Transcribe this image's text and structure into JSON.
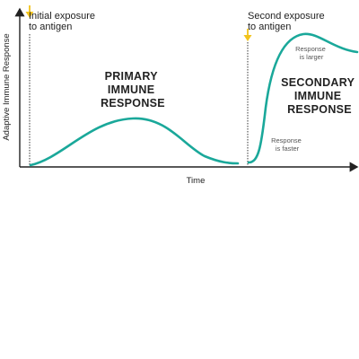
{
  "chart_data": {
    "type": "line",
    "xlabel": "Time",
    "ylabel": "Adaptive Immune Response",
    "series_color": "#1aa89a",
    "marker_color": "#f2c31b",
    "events": [
      {
        "label_lines": [
          "Initial exposure",
          "to antigen"
        ]
      },
      {
        "label_lines": [
          "Second exposure",
          "to antigen"
        ]
      }
    ],
    "phases": [
      {
        "label_lines": [
          "PRIMARY",
          "IMMUNE",
          "RESPONSE"
        ]
      },
      {
        "label_lines": [
          "SECONDARY",
          "IMMUNE",
          "RESPONSE"
        ]
      }
    ],
    "notes": [
      {
        "lines": [
          "Response",
          "is larger"
        ]
      },
      {
        "lines": [
          "Response",
          "is faster"
        ]
      }
    ]
  }
}
